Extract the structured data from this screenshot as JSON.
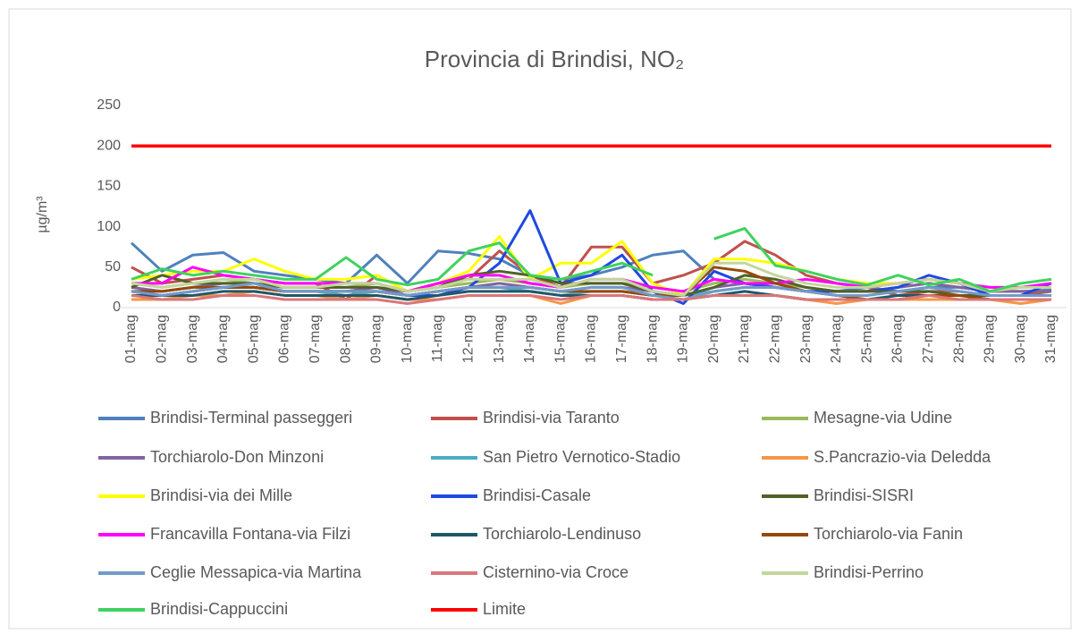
{
  "chart_data": {
    "type": "line",
    "title": "Provincia di Brindisi, NO₂",
    "y_label": "µg/m³",
    "categories": [
      "01-mag",
      "02-mag",
      "03-mag",
      "04-mag",
      "05-mag",
      "06-mag",
      "07-mag",
      "08-mag",
      "09-mag",
      "10-mag",
      "11-mag",
      "12-mag",
      "13-mag",
      "14-mag",
      "15-mag",
      "16-mag",
      "17-mag",
      "18-mag",
      "19-mag",
      "20-mag",
      "21-mag",
      "22-mag",
      "23-mag",
      "24-mag",
      "25-mag",
      "26-mag",
      "27-mag",
      "28-mag",
      "29-mag",
      "30-mag",
      "31-mag"
    ],
    "ylim": [
      0,
      250
    ],
    "yticks": [
      0,
      50,
      100,
      150,
      200,
      250
    ],
    "grid": false,
    "legend": "bottom",
    "series": [
      {
        "name": "Brindisi-Terminal passeggeri",
        "color": "#4f81bd",
        "values": [
          80,
          45,
          65,
          68,
          45,
          40,
          35,
          30,
          65,
          30,
          70,
          67,
          60,
          40,
          35,
          40,
          50,
          65,
          70,
          35,
          30,
          25,
          20,
          20,
          25,
          20,
          25,
          25,
          20,
          20,
          22
        ]
      },
      {
        "name": "Brindisi-via Taranto",
        "color": "#c0504d",
        "values": [
          50,
          30,
          35,
          40,
          35,
          30,
          30,
          10,
          40,
          20,
          30,
          35,
          70,
          40,
          25,
          75,
          75,
          30,
          40,
          55,
          82,
          65,
          40,
          30,
          25,
          15,
          20,
          20,
          15,
          15,
          20
        ]
      },
      {
        "name": "Mesagne-via Udine",
        "color": "#9bbb59",
        "values": [
          30,
          25,
          30,
          35,
          30,
          25,
          25,
          25,
          30,
          20,
          25,
          30,
          35,
          30,
          25,
          30,
          30,
          25,
          20,
          30,
          35,
          30,
          25,
          20,
          20,
          25,
          30,
          25,
          20,
          20,
          20
        ]
      },
      {
        "name": "Torchiarolo-Don Minzoni",
        "color": "#8064a2",
        "values": [
          25,
          20,
          25,
          30,
          30,
          20,
          20,
          20,
          25,
          15,
          20,
          25,
          30,
          25,
          20,
          25,
          25,
          20,
          15,
          25,
          30,
          25,
          20,
          20,
          20,
          25,
          30,
          25,
          20,
          20,
          20
        ]
      },
      {
        "name": "San Pietro Vernotico-Stadio",
        "color": "#4bacc6",
        "values": [
          20,
          15,
          20,
          25,
          25,
          20,
          20,
          15,
          20,
          15,
          20,
          25,
          25,
          20,
          15,
          20,
          20,
          15,
          15,
          20,
          25,
          25,
          20,
          15,
          15,
          20,
          25,
          20,
          15,
          15,
          15
        ]
      },
      {
        "name": "S.Pancrazio-via Deledda",
        "color": "#f79646",
        "values": [
          10,
          10,
          15,
          15,
          20,
          15,
          15,
          10,
          15,
          10,
          10,
          15,
          15,
          15,
          5,
          15,
          15,
          10,
          10,
          15,
          15,
          15,
          10,
          5,
          10,
          10,
          10,
          10,
          10,
          5,
          10
        ]
      },
      {
        "name": "Brindisi-via dei Mille",
        "color": "#ffff00",
        "values": [
          35,
          40,
          45,
          45,
          60,
          45,
          35,
          35,
          40,
          20,
          30,
          45,
          88,
          35,
          55,
          55,
          82,
          30,
          15,
          60,
          60,
          55,
          45,
          35,
          30,
          30,
          35,
          30,
          25,
          25,
          30
        ]
      },
      {
        "name": "Brindisi-Casale",
        "color": "#1f49e0",
        "values": [
          20,
          15,
          20,
          25,
          25,
          20,
          20,
          20,
          20,
          15,
          15,
          25,
          55,
          120,
          30,
          40,
          65,
          20,
          5,
          45,
          30,
          25,
          20,
          20,
          20,
          25,
          40,
          30,
          15,
          15,
          30
        ]
      },
      {
        "name": "Brindisi-SISRI",
        "color": "#4f6228",
        "values": [
          25,
          40,
          30,
          30,
          30,
          25,
          25,
          25,
          25,
          20,
          25,
          40,
          45,
          40,
          30,
          30,
          30,
          20,
          15,
          25,
          40,
          35,
          25,
          20,
          20,
          20,
          20,
          15,
          15,
          15,
          15
        ]
      },
      {
        "name": "Francavilla Fontana-via Filzi",
        "color": "#ff00ff",
        "values": [
          30,
          30,
          50,
          40,
          35,
          30,
          30,
          30,
          30,
          20,
          30,
          40,
          40,
          30,
          25,
          35,
          35,
          25,
          20,
          35,
          30,
          30,
          35,
          30,
          25,
          30,
          35,
          30,
          25,
          25,
          30
        ]
      },
      {
        "name": "Torchiarolo-Lendinuso",
        "color": "#215867",
        "values": [
          15,
          15,
          15,
          20,
          20,
          15,
          15,
          15,
          15,
          10,
          15,
          20,
          20,
          20,
          15,
          15,
          15,
          10,
          10,
          15,
          20,
          15,
          10,
          10,
          10,
          15,
          15,
          15,
          10,
          10,
          10
        ]
      },
      {
        "name": "Torchiarolo-via Fanin",
        "color": "#974806",
        "values": [
          20,
          20,
          25,
          25,
          25,
          20,
          20,
          20,
          20,
          15,
          20,
          25,
          25,
          25,
          20,
          20,
          20,
          15,
          15,
          50,
          45,
          30,
          20,
          15,
          10,
          10,
          15,
          15,
          10,
          10,
          10
        ]
      },
      {
        "name": "Ceglie Messapica-via Martina",
        "color": "#729aca",
        "values": [
          20,
          15,
          20,
          25,
          30,
          20,
          20,
          20,
          20,
          15,
          20,
          25,
          25,
          25,
          20,
          25,
          25,
          15,
          10,
          20,
          25,
          25,
          20,
          15,
          15,
          20,
          25,
          20,
          15,
          15,
          15
        ]
      },
      {
        "name": "Cisternino-via Croce",
        "color": "#d9777a",
        "values": [
          15,
          10,
          10,
          15,
          15,
          10,
          10,
          10,
          10,
          5,
          10,
          15,
          15,
          15,
          10,
          15,
          15,
          10,
          10,
          15,
          15,
          15,
          10,
          10,
          10,
          10,
          15,
          10,
          10,
          10,
          10
        ]
      },
      {
        "name": "Brindisi-Perrino",
        "color": "#c3d69b",
        "values": [
          30,
          25,
          30,
          35,
          35,
          25,
          25,
          30,
          30,
          20,
          25,
          35,
          35,
          35,
          25,
          35,
          35,
          20,
          15,
          55,
          55,
          40,
          30,
          25,
          25,
          30,
          35,
          30,
          20,
          25,
          25
        ]
      },
      {
        "name": "Brindisi-Cappuccini",
        "color": "#3fd25e",
        "values": [
          35,
          48,
          40,
          45,
          40,
          35,
          35,
          62,
          35,
          28,
          35,
          70,
          80,
          40,
          35,
          45,
          55,
          40,
          null,
          85,
          98,
          52,
          45,
          35,
          28,
          40,
          28,
          35,
          20,
          30,
          35
        ]
      },
      {
        "name": "Limite",
        "color": "#ff0000",
        "values": [
          200,
          200,
          200,
          200,
          200,
          200,
          200,
          200,
          200,
          200,
          200,
          200,
          200,
          200,
          200,
          200,
          200,
          200,
          200,
          200,
          200,
          200,
          200,
          200,
          200,
          200,
          200,
          200,
          200,
          200,
          200
        ]
      }
    ]
  }
}
